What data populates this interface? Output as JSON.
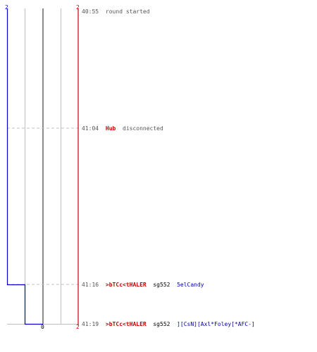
{
  "axis": {
    "top_left_label": "2",
    "top_right_label": "2",
    "bottom_center_label": "0",
    "bottom_right_label": "2"
  },
  "colors": {
    "blue_team": "#0000cc",
    "red_team": "#cc0000",
    "grid": "#c0c0c0",
    "center": "#707070"
  },
  "events": [
    {
      "time": "40:55",
      "parts": [
        {
          "text": "round started",
          "style": "msg"
        }
      ]
    },
    {
      "time": "41:04",
      "parts": [
        {
          "text": "Hub",
          "style": "red"
        },
        {
          "text": " disconnected",
          "style": "msg"
        }
      ]
    },
    {
      "time": "41:16",
      "parts": [
        {
          "text": ">bTCc<tHALER",
          "style": "red"
        },
        {
          "text": " sg552 ",
          "style": "black"
        },
        {
          "text": "5elCandy",
          "style": "blue"
        }
      ]
    },
    {
      "time": "41:19",
      "parts": [
        {
          "text": ">bTCc<tHALER",
          "style": "red"
        },
        {
          "text": " sg552 ",
          "style": "black"
        },
        {
          "text": "][CsN][Axl*Foley[*AFC-]",
          "style": "blue"
        }
      ]
    }
  ]
}
